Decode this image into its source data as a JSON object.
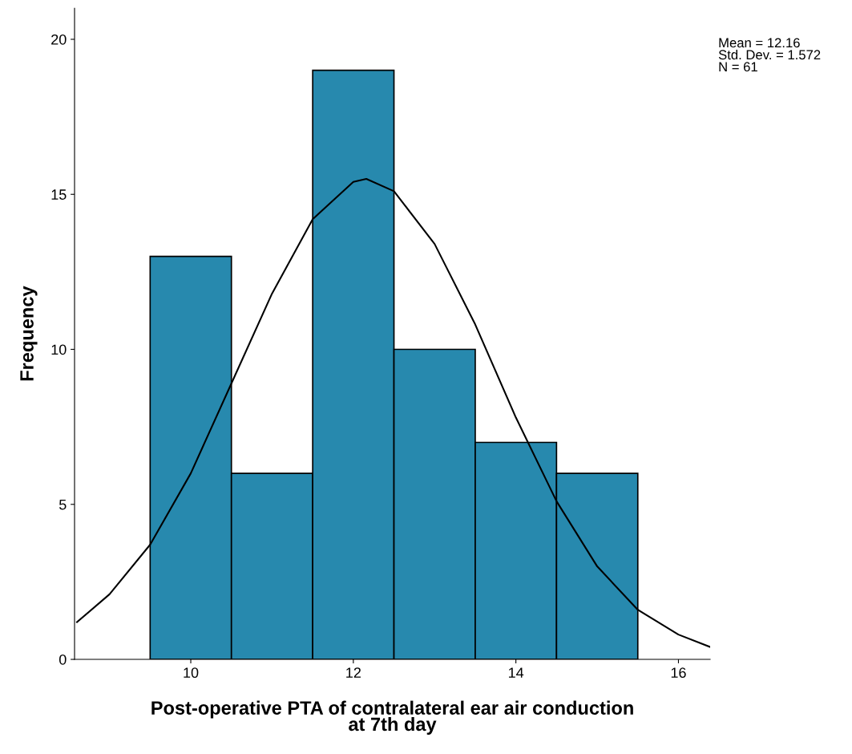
{
  "chart_data": {
    "type": "histogram",
    "xlabel": "Post-operative PTA of contralateral ear air conduction\nat 7th day",
    "ylabel": "Frequency",
    "bins": [
      9.5,
      10.5,
      11.5,
      12.5,
      13.5,
      14.5,
      15.5
    ],
    "values": [
      13,
      6,
      19,
      10,
      7,
      6
    ],
    "color": "#2789ae",
    "series": [
      {
        "type": "line",
        "color": "#000000",
        "x": [
          8.6,
          9,
          9.5,
          10,
          10.5,
          11,
          11.5,
          12,
          12.16,
          12.5,
          13,
          13.5,
          14,
          14.5,
          15,
          15.5,
          16,
          16.39
        ],
        "values": [
          1.2,
          2.1,
          3.7,
          6.0,
          8.9,
          11.8,
          14.2,
          15.4,
          15.5,
          15.1,
          13.4,
          10.8,
          7.8,
          5.1,
          3.0,
          1.6,
          0.8,
          0.4
        ]
      }
    ],
    "xlim": [
      8.57,
      16.39
    ],
    "ylim": [
      0,
      21.0
    ],
    "xticks": [
      10,
      12,
      14,
      16
    ],
    "yticks": [
      0,
      5,
      10,
      15,
      20
    ],
    "grid": false,
    "legend": false,
    "annotations": [
      "Mean = 12.16\nStd. Dev. = 1.572\nN = 61"
    ]
  }
}
